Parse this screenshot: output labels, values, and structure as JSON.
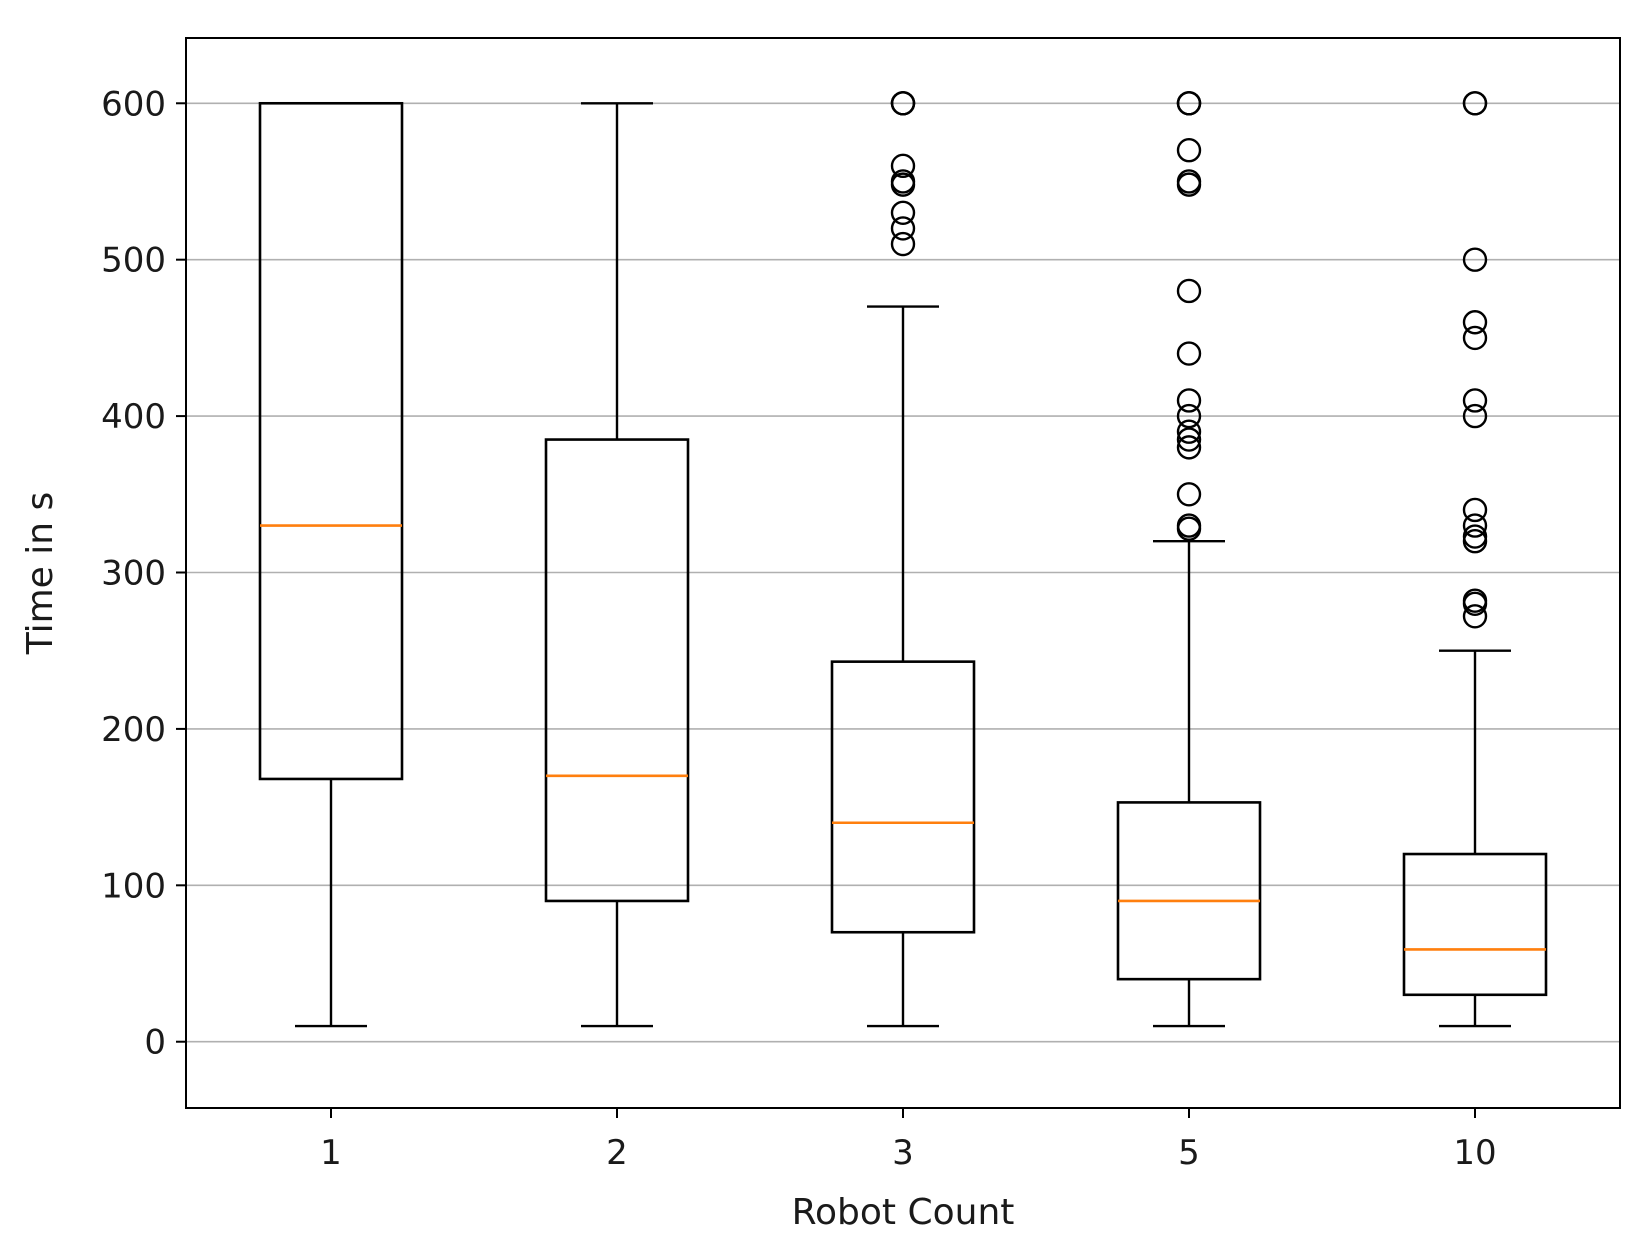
{
  "chart_data": {
    "type": "box",
    "title": "",
    "xlabel": "Robot Count",
    "ylabel": "Time in s",
    "ylim": [
      -20,
      620
    ],
    "yticks": [
      0,
      100,
      200,
      300,
      400,
      500,
      600
    ],
    "grid": "horizontal",
    "categories": [
      "1",
      "2",
      "3",
      "5",
      "10"
    ],
    "boxes": [
      {
        "category": "1",
        "whisker_low": 10,
        "q1": 168,
        "median": 330,
        "q3": 600,
        "whisker_high": 600,
        "outliers": []
      },
      {
        "category": "2",
        "whisker_low": 10,
        "q1": 90,
        "median": 170,
        "q3": 385,
        "whisker_high": 600,
        "outliers": []
      },
      {
        "category": "3",
        "whisker_low": 10,
        "q1": 70,
        "median": 140,
        "q3": 243,
        "whisker_high": 470,
        "outliers": [
          510,
          520,
          530,
          548,
          550,
          560,
          600,
          600,
          600
        ]
      },
      {
        "category": "5",
        "whisker_low": 10,
        "q1": 40,
        "median": 90,
        "q3": 153,
        "whisker_high": 320,
        "outliers": [
          328,
          330,
          350,
          380,
          385,
          390,
          400,
          410,
          440,
          480,
          548,
          550,
          570,
          600,
          600,
          600
        ]
      },
      {
        "category": "10",
        "whisker_low": 10,
        "q1": 30,
        "median": 59,
        "q3": 120,
        "whisker_high": 250,
        "outliers": [
          272,
          280,
          282,
          320,
          323,
          330,
          340,
          400,
          410,
          450,
          460,
          500,
          600,
          600
        ]
      }
    ],
    "colors": {
      "box": "#000000",
      "median": "#ff7f0e",
      "grid": "#b0b0b0",
      "axes": "#000000"
    }
  }
}
